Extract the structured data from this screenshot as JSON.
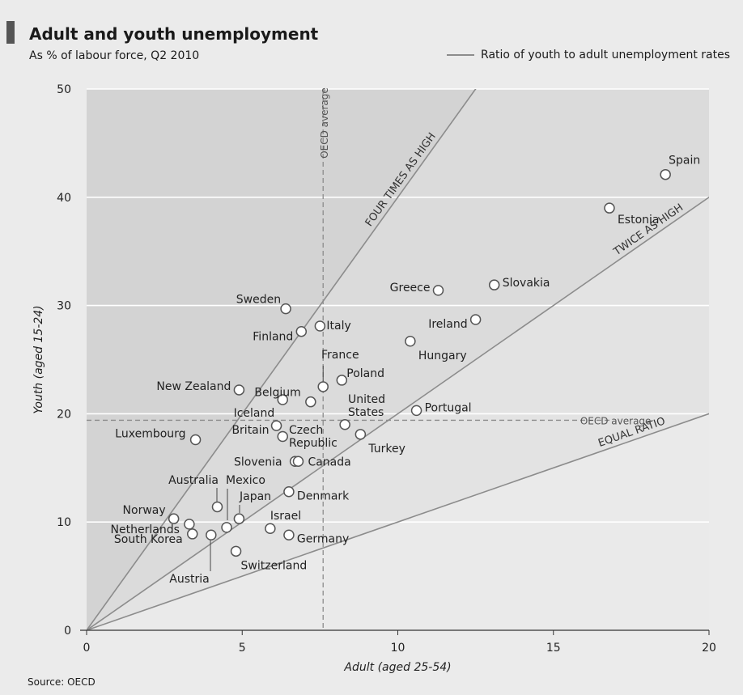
{
  "header": {
    "title": "Adult and youth unemployment",
    "subtitle": "As % of labour force, Q2 2010",
    "legend": "Ratio of youth to adult unemployment rates"
  },
  "source": "Source: OECD",
  "colors": {
    "background": "#ebebeb",
    "panel": "#d9d9d9",
    "ratio_line": "#8c8c8c",
    "marker": "#ffffff"
  },
  "chart_data": {
    "type": "scatter",
    "title": "Adult and youth unemployment",
    "subtitle": "As % of labour force, Q2 2010",
    "xlabel": "Adult (aged 25-54)",
    "ylabel": "Youth (aged 15-24)",
    "xlim": [
      0,
      20
    ],
    "ylim": [
      0,
      50
    ],
    "xticks": [
      0,
      5,
      10,
      15,
      20
    ],
    "yticks": [
      0,
      10,
      20,
      30,
      40,
      50
    ],
    "grid": "horizontal",
    "legend": "top-right",
    "oecd_average": {
      "x": 7.6,
      "y": 19.4,
      "label": "OECD average"
    },
    "ratio_lines": [
      {
        "label": "FOUR TIMES AS HIGH",
        "ratio": 4
      },
      {
        "label": "TWICE AS HIGH",
        "ratio": 2
      },
      {
        "label": "EQUAL RATIO",
        "ratio": 1
      }
    ],
    "points": [
      {
        "name": "Spain",
        "x": 18.6,
        "y": 42.1
      },
      {
        "name": "Estonia",
        "x": 16.8,
        "y": 39.0
      },
      {
        "name": "Slovakia",
        "x": 13.1,
        "y": 31.9
      },
      {
        "name": "Greece",
        "x": 11.3,
        "y": 31.4
      },
      {
        "name": "Ireland",
        "x": 12.5,
        "y": 28.7
      },
      {
        "name": "Hungary",
        "x": 10.4,
        "y": 26.7
      },
      {
        "name": "Portugal",
        "x": 10.6,
        "y": 20.3
      },
      {
        "name": "Sweden",
        "x": 6.4,
        "y": 29.7
      },
      {
        "name": "Italy",
        "x": 7.5,
        "y": 28.1
      },
      {
        "name": "Finland",
        "x": 6.9,
        "y": 27.6
      },
      {
        "name": "France",
        "x": 7.6,
        "y": 22.5
      },
      {
        "name": "Poland",
        "x": 8.2,
        "y": 23.1
      },
      {
        "name": "Belgium",
        "x": 7.2,
        "y": 21.1
      },
      {
        "name": "New Zealand",
        "x": 4.9,
        "y": 22.2
      },
      {
        "name": "Iceland",
        "x": 6.3,
        "y": 21.3
      },
      {
        "name": "United States",
        "x": 8.3,
        "y": 19.0
      },
      {
        "name": "Britain",
        "x": 6.1,
        "y": 18.9
      },
      {
        "name": "Czech Republic",
        "x": 6.3,
        "y": 17.9
      },
      {
        "name": "Turkey",
        "x": 8.8,
        "y": 18.1
      },
      {
        "name": "Luxembourg",
        "x": 3.5,
        "y": 17.6
      },
      {
        "name": "Slovenia",
        "x": 6.7,
        "y": 15.6
      },
      {
        "name": "Canada",
        "x": 6.8,
        "y": 15.6
      },
      {
        "name": "Denmark",
        "x": 6.5,
        "y": 12.8
      },
      {
        "name": "Australia",
        "x": 4.2,
        "y": 11.4
      },
      {
        "name": "Mexico",
        "x": 4.5,
        "y": 9.5
      },
      {
        "name": "Japan",
        "x": 4.9,
        "y": 10.3
      },
      {
        "name": "Norway",
        "x": 2.8,
        "y": 10.3
      },
      {
        "name": "South Korea",
        "x": 3.4,
        "y": 8.9
      },
      {
        "name": "Netherlands",
        "x": 3.3,
        "y": 9.8
      },
      {
        "name": "Austria",
        "x": 4.0,
        "y": 8.8
      },
      {
        "name": "Israel",
        "x": 5.9,
        "y": 9.4
      },
      {
        "name": "Germany",
        "x": 6.5,
        "y": 8.8
      },
      {
        "name": "Switzerland",
        "x": 4.8,
        "y": 7.3
      }
    ]
  }
}
